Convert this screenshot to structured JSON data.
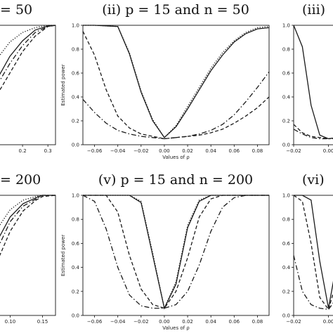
{
  "chart_data": [
    {
      "type": "line",
      "panel": "left-top",
      "title": "= 50",
      "xlabel": "",
      "ylabel": "",
      "xlim": [
        0.1,
        0.33
      ],
      "ylim": [
        0,
        1
      ],
      "xticks": [
        0.2,
        0.3
      ],
      "xtick_labels": [
        "0.2",
        "0.3"
      ],
      "yticks": [],
      "ytick_labels": [],
      "series": [
        {
          "style": "solid",
          "x": [
            0.1,
            0.15,
            0.2,
            0.25,
            0.3,
            0.33
          ],
          "y": [
            0.55,
            0.74,
            0.87,
            0.96,
            0.995,
            1.0
          ]
        },
        {
          "style": "dotted",
          "x": [
            0.1,
            0.15,
            0.2,
            0.25,
            0.3,
            0.33
          ],
          "y": [
            0.72,
            0.86,
            0.94,
            0.98,
            1.0,
            1.0
          ]
        },
        {
          "style": "dashed",
          "x": [
            0.1,
            0.15,
            0.2,
            0.25,
            0.3,
            0.33
          ],
          "y": [
            0.42,
            0.6,
            0.78,
            0.91,
            0.99,
            1.0
          ]
        },
        {
          "style": "dashdot",
          "x": [
            0.1,
            0.15,
            0.2,
            0.25,
            0.3,
            0.33
          ],
          "y": [
            0.5,
            0.68,
            0.83,
            0.94,
            0.99,
            1.0
          ]
        }
      ]
    },
    {
      "type": "line",
      "panel": "center-top",
      "title": "(ii) p = 15 and n = 50",
      "xlabel": "Values of ρ",
      "ylabel": "Estimated power",
      "xlim": [
        -0.07,
        0.09
      ],
      "ylim": [
        0,
        1
      ],
      "xticks": [
        -0.06,
        -0.04,
        -0.02,
        0.0,
        0.02,
        0.04,
        0.06,
        0.08
      ],
      "xtick_labels": [
        "−0.06",
        "−0.04",
        "−0.02",
        "0.00",
        "0.02",
        "0.04",
        "0.06",
        "0.08"
      ],
      "yticks": [
        0.0,
        0.2,
        0.4,
        0.6,
        0.8,
        1.0
      ],
      "ytick_labels": [
        "0.0",
        "0.2",
        "0.4",
        "0.6",
        "0.8",
        "1.0"
      ],
      "series": [
        {
          "style": "solid",
          "x": [
            -0.07,
            -0.06,
            -0.04,
            -0.03,
            -0.02,
            -0.01,
            0.0,
            0.01,
            0.02,
            0.03,
            0.04,
            0.05,
            0.06,
            0.07,
            0.08,
            0.09
          ],
          "y": [
            1.0,
            1.0,
            0.99,
            0.76,
            0.44,
            0.2,
            0.06,
            0.15,
            0.3,
            0.46,
            0.62,
            0.75,
            0.86,
            0.93,
            0.97,
            0.98
          ]
        },
        {
          "style": "dotted",
          "x": [
            -0.07,
            -0.06,
            -0.04,
            -0.03,
            -0.02,
            -0.01,
            0.0,
            0.01,
            0.02,
            0.03,
            0.04,
            0.05,
            0.06,
            0.07,
            0.08,
            0.09
          ],
          "y": [
            1.0,
            1.0,
            0.99,
            0.77,
            0.45,
            0.21,
            0.06,
            0.16,
            0.32,
            0.48,
            0.64,
            0.77,
            0.87,
            0.94,
            0.98,
            0.99
          ]
        },
        {
          "style": "dashed",
          "x": [
            -0.07,
            -0.06,
            -0.05,
            -0.04,
            -0.03,
            -0.02,
            -0.01,
            0.0,
            0.01,
            0.02,
            0.03,
            0.04,
            0.05,
            0.06,
            0.07,
            0.08,
            0.09
          ],
          "y": [
            0.95,
            0.75,
            0.46,
            0.24,
            0.14,
            0.09,
            0.07,
            0.05,
            0.06,
            0.07,
            0.08,
            0.1,
            0.13,
            0.18,
            0.24,
            0.31,
            0.4
          ]
        },
        {
          "style": "dashdot",
          "x": [
            -0.07,
            -0.06,
            -0.05,
            -0.04,
            -0.03,
            -0.02,
            -0.01,
            0.0,
            0.01,
            0.02,
            0.03,
            0.04,
            0.05,
            0.06,
            0.07,
            0.08,
            0.09
          ],
          "y": [
            0.38,
            0.27,
            0.18,
            0.12,
            0.09,
            0.07,
            0.06,
            0.05,
            0.06,
            0.07,
            0.09,
            0.12,
            0.17,
            0.25,
            0.36,
            0.48,
            0.61
          ]
        }
      ]
    },
    {
      "type": "line",
      "panel": "right-top",
      "title": "(iii)",
      "xlabel": "",
      "ylabel": "",
      "xlim": [
        -0.02,
        0.005
      ],
      "ylim": [
        0,
        1
      ],
      "xticks": [
        -0.02,
        0.0
      ],
      "xtick_labels": [
        "−0.02",
        "0.00"
      ],
      "yticks": [
        0.0,
        0.2,
        0.4,
        0.6,
        0.8,
        1.0
      ],
      "ytick_labels": [
        "0.0",
        "0.2",
        "0.4",
        "0.6",
        "0.8",
        "1.0"
      ],
      "series": [
        {
          "style": "solid",
          "x": [
            -0.02,
            -0.015,
            -0.01,
            -0.005,
            0.0,
            0.005
          ],
          "y": [
            1.0,
            0.82,
            0.33,
            0.08,
            0.05,
            0.06
          ]
        },
        {
          "style": "dashed",
          "x": [
            -0.02,
            -0.015,
            -0.01,
            -0.005,
            0.0,
            0.005
          ],
          "y": [
            0.17,
            0.1,
            0.07,
            0.06,
            0.05,
            0.06
          ]
        },
        {
          "style": "dashdot",
          "x": [
            -0.02,
            -0.015,
            -0.01,
            -0.005,
            0.0,
            0.005
          ],
          "y": [
            0.13,
            0.09,
            0.06,
            0.05,
            0.05,
            0.05
          ]
        }
      ]
    },
    {
      "type": "line",
      "panel": "left-bottom",
      "title": "= 200",
      "xlabel": "",
      "ylabel": "",
      "xlim": [
        0.08,
        0.17
      ],
      "ylim": [
        0,
        1
      ],
      "xticks": [
        0.1,
        0.15
      ],
      "xtick_labels": [
        "0.10",
        "0.15"
      ],
      "yticks": [],
      "ytick_labels": [],
      "series": [
        {
          "style": "solid",
          "x": [
            0.08,
            0.1,
            0.12,
            0.14,
            0.15,
            0.17
          ],
          "y": [
            0.62,
            0.82,
            0.93,
            0.98,
            1.0,
            1.0
          ]
        },
        {
          "style": "dotted",
          "x": [
            0.08,
            0.1,
            0.12,
            0.14,
            0.15,
            0.17
          ],
          "y": [
            0.72,
            0.88,
            0.96,
            0.99,
            1.0,
            1.0
          ]
        },
        {
          "style": "dashed",
          "x": [
            0.08,
            0.1,
            0.12,
            0.14,
            0.15,
            0.17
          ],
          "y": [
            0.45,
            0.7,
            0.87,
            0.96,
            0.99,
            1.0
          ]
        },
        {
          "style": "dashdot",
          "x": [
            0.08,
            0.1,
            0.12,
            0.14,
            0.15,
            0.17
          ],
          "y": [
            0.55,
            0.78,
            0.91,
            0.97,
            1.0,
            1.0
          ]
        }
      ]
    },
    {
      "type": "line",
      "panel": "center-bottom",
      "title": "(v) p = 15 and n = 200",
      "xlabel": "Values of ρ",
      "ylabel": "Estimated power",
      "xlim": [
        -0.07,
        0.09
      ],
      "ylim": [
        0,
        1
      ],
      "xticks": [
        -0.06,
        -0.04,
        -0.02,
        0.0,
        0.02,
        0.04,
        0.06,
        0.08
      ],
      "xtick_labels": [
        "−0.06",
        "−0.04",
        "−0.02",
        "0.00",
        "0.02",
        "0.04",
        "0.06",
        "0.08"
      ],
      "yticks": [
        0.0,
        0.2,
        0.4,
        0.6,
        0.8,
        1.0
      ],
      "ytick_labels": [
        "0.0",
        "0.2",
        "0.4",
        "0.6",
        "0.8",
        "1.0"
      ],
      "series": [
        {
          "style": "solid",
          "x": [
            -0.07,
            -0.03,
            -0.02,
            -0.01,
            0.0,
            0.01,
            0.02,
            0.03,
            0.04,
            0.06,
            0.09
          ],
          "y": [
            1.0,
            1.0,
            0.94,
            0.5,
            0.06,
            0.26,
            0.73,
            0.95,
            1.0,
            1.0,
            1.0
          ]
        },
        {
          "style": "dotted",
          "x": [
            -0.07,
            -0.03,
            -0.02,
            -0.01,
            0.0,
            0.01,
            0.02,
            0.03,
            0.04,
            0.06,
            0.09
          ],
          "y": [
            1.0,
            1.0,
            0.95,
            0.52,
            0.06,
            0.28,
            0.75,
            0.96,
            1.0,
            1.0,
            1.0
          ]
        },
        {
          "style": "dashed",
          "x": [
            -0.07,
            -0.05,
            -0.04,
            -0.03,
            -0.02,
            -0.01,
            0.0,
            0.01,
            0.02,
            0.03,
            0.04,
            0.05,
            0.06,
            0.09
          ],
          "y": [
            1.0,
            1.0,
            0.86,
            0.5,
            0.22,
            0.09,
            0.06,
            0.2,
            0.48,
            0.82,
            0.97,
            1.0,
            1.0,
            1.0
          ]
        },
        {
          "style": "dashdot",
          "x": [
            -0.07,
            -0.06,
            -0.05,
            -0.04,
            -0.03,
            -0.02,
            -0.01,
            0.0,
            0.01,
            0.02,
            0.03,
            0.04,
            0.05,
            0.06,
            0.07,
            0.09
          ],
          "y": [
            1.0,
            0.95,
            0.72,
            0.4,
            0.17,
            0.08,
            0.06,
            0.06,
            0.09,
            0.2,
            0.42,
            0.7,
            0.9,
            0.98,
            1.0,
            1.0
          ]
        }
      ]
    },
    {
      "type": "line",
      "panel": "right-bottom",
      "title": "(vi)",
      "xlabel": "",
      "ylabel": "",
      "xlim": [
        -0.02,
        0.005
      ],
      "ylim": [
        0,
        1
      ],
      "xticks": [
        -0.02,
        0.0
      ],
      "xtick_labels": [
        "−0.02",
        "0.00"
      ],
      "yticks": [
        0.0,
        0.2,
        0.4,
        0.6,
        0.8,
        1.0
      ],
      "ytick_labels": [
        "0.0",
        "0.2",
        "0.4",
        "0.6",
        "0.8",
        "1.0"
      ],
      "series": [
        {
          "style": "solid",
          "x": [
            -0.02,
            -0.015,
            -0.01,
            -0.005,
            0.0,
            0.003,
            0.005
          ],
          "y": [
            1.0,
            1.0,
            0.96,
            0.45,
            0.06,
            0.3,
            0.55
          ]
        },
        {
          "style": "dashed",
          "x": [
            -0.02,
            -0.015,
            -0.01,
            -0.005,
            0.0,
            0.003,
            0.005
          ],
          "y": [
            1.0,
            0.95,
            0.6,
            0.15,
            0.05,
            0.2,
            0.45
          ]
        },
        {
          "style": "dashdot",
          "x": [
            -0.02,
            -0.015,
            -0.01,
            -0.005,
            0.0,
            0.005
          ],
          "y": [
            0.5,
            0.2,
            0.09,
            0.06,
            0.05,
            0.15
          ]
        }
      ]
    }
  ]
}
